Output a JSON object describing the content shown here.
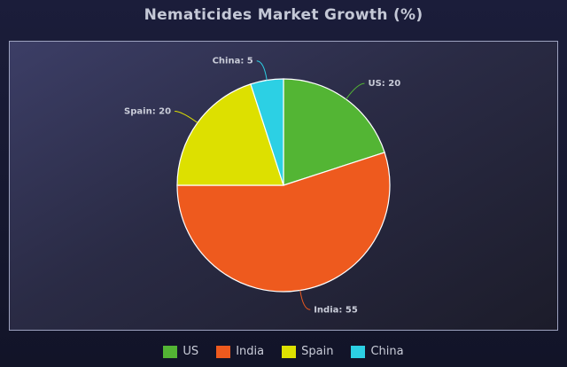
{
  "chart_data": {
    "type": "pie",
    "title": "Nematicides Market Growth (%)",
    "categories": [
      "US",
      "India",
      "Spain",
      "China"
    ],
    "values": [
      20,
      55,
      20,
      5
    ],
    "colors": [
      "#53b534",
      "#ee5a1e",
      "#dde000",
      "#2cd0e4"
    ],
    "slice_labels": [
      "US: 20",
      "India: 55",
      "Spain: 20",
      "China: 5"
    ],
    "legend_position": "bottom"
  }
}
